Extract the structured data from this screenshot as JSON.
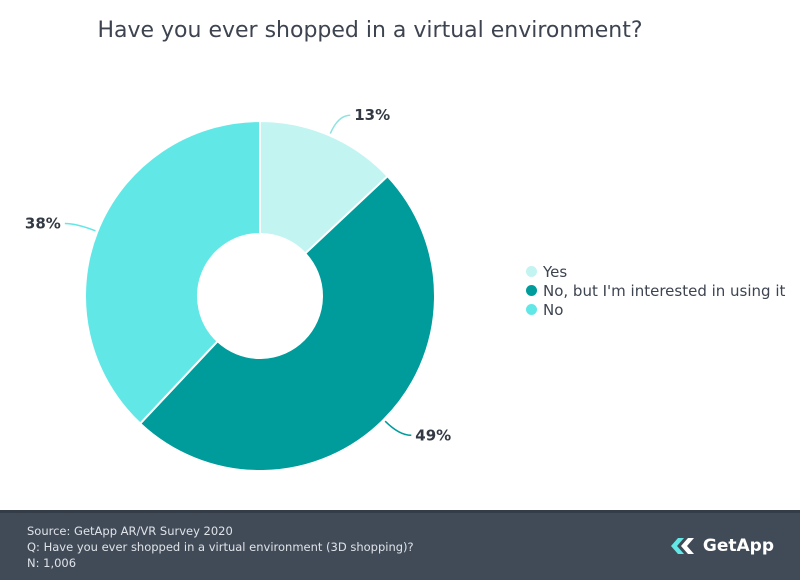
{
  "chart_data": {
    "type": "pie",
    "title": "Have you ever shopped in a virtual environment?",
    "categories": [
      "Yes",
      "No, but I'm interested in using it",
      "No"
    ],
    "values": [
      13,
      49,
      38
    ],
    "labels": [
      "13%",
      "49%",
      "38%"
    ],
    "colors": [
      "#c2f4f2",
      "#009b9b",
      "#62e7e7"
    ],
    "legend": "right"
  },
  "footer": {
    "source": "Source: GetApp AR/VR Survey 2020",
    "question": "Q: Have you ever shopped in a virtual environment (3D shopping)?",
    "n": "N: 1,006"
  },
  "brand": {
    "name": "GetApp",
    "icon": "getapp-logo-icon"
  }
}
